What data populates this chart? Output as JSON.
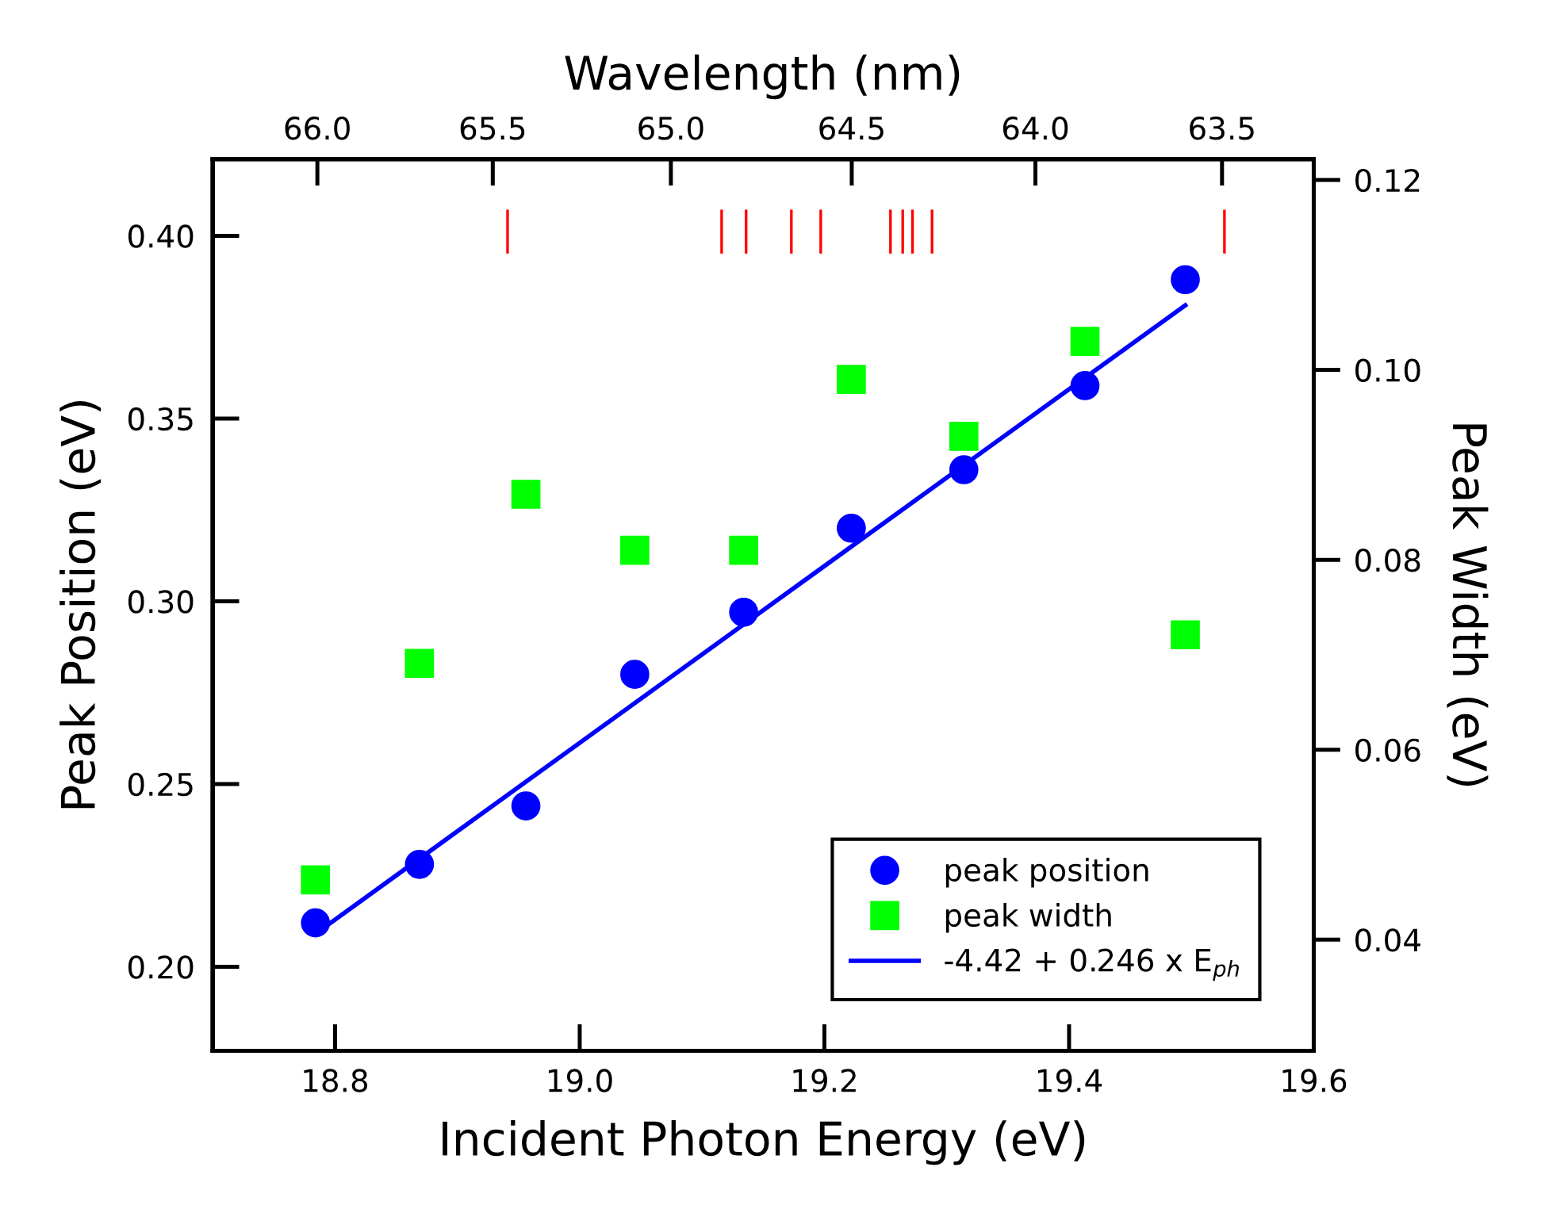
{
  "chart_data": {
    "type": "scatter",
    "xlabel": "Incident Photon Energy (eV)",
    "ylabel": "Peak Position (eV)",
    "y2label": "Peak Width (eV)",
    "x2label": "Wavelength (nm)",
    "xlim": [
      18.7,
      19.6
    ],
    "xticks": [
      18.8,
      {
        "value": 19.0,
        "label": "19.0"
      },
      19.2,
      19.4,
      19.6
    ],
    "ylim": [
      0.177,
      0.421
    ],
    "yticks": [
      {
        "value": 0.2,
        "label": "0.20"
      },
      0.25,
      {
        "value": 0.3,
        "label": "0.30"
      },
      0.35,
      {
        "value": 0.4,
        "label": "0.40"
      }
    ],
    "y2lim": [
      0.0283,
      0.1222
    ],
    "y2ticks": [
      0.04,
      0.06,
      0.08,
      {
        "value": 0.1,
        "label": "0.10"
      },
      0.12
    ],
    "x2lim": [
      66.302,
      63.257
    ],
    "x2ticks": [
      {
        "value": 66.0,
        "label": "66.0"
      },
      65.5,
      {
        "value": 65.0,
        "label": "65.0"
      },
      64.5,
      {
        "value": 64.0,
        "label": "64.0"
      },
      63.5
    ],
    "grid": false,
    "legend": "bottom right",
    "series": [
      {
        "name": "peak position",
        "marker": "circle",
        "color": "#0000ff",
        "x": [
          18.784,
          18.869,
          18.956,
          19.045,
          19.134,
          19.222,
          19.314,
          19.413,
          19.495
        ],
        "values": [
          0.212,
          0.228,
          0.244,
          0.28,
          0.297,
          0.32,
          0.336,
          0.359,
          0.388
        ]
      },
      {
        "name": "peak width",
        "marker": "square",
        "color": "#00ff00",
        "axis": "y2",
        "x": [
          18.784,
          18.869,
          18.956,
          19.045,
          19.134,
          19.222,
          19.314,
          19.413,
          19.495
        ],
        "values": [
          0.0463,
          0.0691,
          0.0869,
          0.081,
          0.081,
          0.099,
          0.093,
          0.103,
          0.0721
        ]
      },
      {
        "name": "-4.42 + 0.246 x E$_{ph}$",
        "type": "line",
        "marker": "none",
        "line_style": "solid",
        "color": "#0000ff",
        "x": [
          18.784,
          19.495
        ],
        "values": [
          0.209,
          0.381
        ]
      },
      {
        "type": "line",
        "color": "#ff0000",
        "x": [
          18.941,
          18.941
        ],
        "values": [
          0.3955,
          0.4068
        ]
      },
      {
        "type": "line",
        "color": "#ff0000",
        "x": [
          19.116,
          19.116
        ],
        "values": [
          0.3955,
          0.4068
        ]
      },
      {
        "type": "line",
        "color": "#ff0000",
        "x": [
          19.136,
          19.136
        ],
        "values": [
          0.3955,
          0.4068
        ]
      },
      {
        "type": "line",
        "color": "#ff0000",
        "x": [
          19.173,
          19.173
        ],
        "values": [
          0.3955,
          0.4068
        ]
      },
      {
        "type": "line",
        "color": "#ff0000",
        "x": [
          19.197,
          19.197
        ],
        "values": [
          0.3955,
          0.4068
        ]
      },
      {
        "type": "line",
        "color": "#ff0000",
        "x": [
          19.254,
          19.254
        ],
        "values": [
          0.3955,
          0.4068
        ]
      },
      {
        "type": "line",
        "color": "#ff0000",
        "x": [
          19.264,
          19.264
        ],
        "values": [
          0.3955,
          0.4068
        ]
      },
      {
        "type": "line",
        "color": "#ff0000",
        "x": [
          19.272,
          19.272
        ],
        "values": [
          0.3955,
          0.4068
        ]
      },
      {
        "type": "line",
        "color": "#ff0000",
        "x": [
          19.288,
          19.288
        ],
        "values": [
          0.3955,
          0.4068
        ]
      },
      {
        "type": "line",
        "color": "#ff0000",
        "x": [
          19.527,
          19.527
        ],
        "values": [
          0.3955,
          0.4068
        ]
      }
    ]
  }
}
